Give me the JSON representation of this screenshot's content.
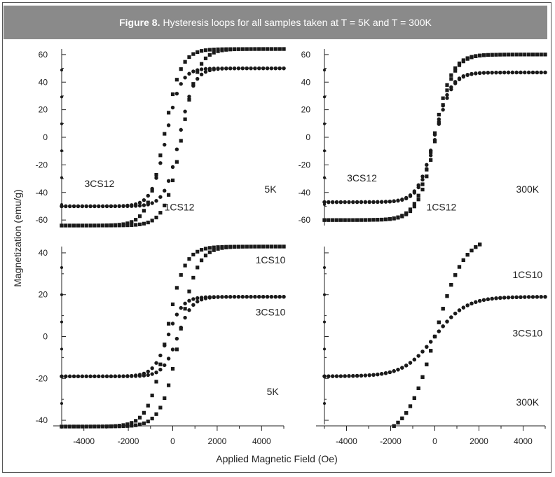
{
  "figure": {
    "label": "Figure 8.",
    "caption": "Hysteresis loops for all samples taken at T = 5K and T = 300K"
  },
  "chart_data": {
    "type": "scatter",
    "xlabel": "Applied Magnetic Field (Oe)",
    "ylabel": "Magnetization (emu/g)",
    "x_ticks": [
      -4000,
      -2000,
      0,
      2000,
      4000
    ],
    "x_tick_labels": [
      "-4000",
      "-2000",
      "0",
      "2000",
      "4000"
    ],
    "xlim": [
      -5000,
      5000
    ],
    "colors": {
      "marker": "#1a1a1a",
      "axis": "#222222",
      "title_bg": "#8a8a8a"
    },
    "panels": [
      {
        "id": "top-left",
        "ylim": [
          -64,
          64
        ],
        "y_ticks": [
          -60,
          -40,
          -20,
          0,
          20,
          40,
          60
        ],
        "y_tick_labels": [
          "-60",
          "-40",
          "-20",
          "0",
          "20",
          "40",
          "60"
        ],
        "annotations": [
          {
            "text": "3CS12",
            "x": -3300,
            "y": -36
          },
          {
            "text": "1CS12",
            "x": 300,
            "y": -53
          },
          {
            "text": "5K",
            "x": 4400,
            "y": -40
          }
        ],
        "series": [
          {
            "name": "1CS12",
            "marker": "square",
            "Ms": 64,
            "Hc": 400,
            "H0": 750
          },
          {
            "name": "3CS12",
            "marker": "circle",
            "Ms": 50,
            "Hc": 300,
            "H0": 650
          }
        ]
      },
      {
        "id": "top-right",
        "ylim": [
          -64,
          64
        ],
        "y_ticks": [
          -60,
          -40,
          -20,
          0,
          20,
          40,
          60
        ],
        "y_tick_labels": [
          "-60",
          "-40",
          "-20",
          "0",
          "20",
          "40",
          "60"
        ],
        "annotations": [
          {
            "text": "3CS12",
            "x": -3300,
            "y": -32
          },
          {
            "text": "1CS12",
            "x": 300,
            "y": -53
          },
          {
            "text": "300K",
            "x": 4200,
            "y": -40
          }
        ],
        "series": [
          {
            "name": "1CS12",
            "marker": "square",
            "Ms": 60,
            "Hc": 40,
            "H0": 800
          },
          {
            "name": "3CS12",
            "marker": "circle",
            "Ms": 47,
            "Hc": 30,
            "H0": 750
          }
        ]
      },
      {
        "id": "bottom-left",
        "ylim": [
          -42,
          43
        ],
        "y_ticks": [
          -40,
          -20,
          0,
          20,
          40
        ],
        "y_tick_labels": [
          "-40",
          "-20",
          "0",
          "20",
          "40"
        ],
        "annotations": [
          {
            "text": "1CS10",
            "x": 4400,
            "y": 35
          },
          {
            "text": "3CS10",
            "x": 4400,
            "y": 10
          },
          {
            "text": "5K",
            "x": 4500,
            "y": -28
          }
        ],
        "series": [
          {
            "name": "1CS10",
            "marker": "square",
            "Ms": 43,
            "Hc": 300,
            "H0": 800
          },
          {
            "name": "3CS10",
            "marker": "circle",
            "Ms": 19,
            "Hc": 220,
            "H0": 650
          }
        ]
      },
      {
        "id": "bottom-right",
        "ylim": [
          -42,
          43
        ],
        "y_ticks": [],
        "y_tick_labels": [],
        "annotations": [
          {
            "text": "1CS10",
            "x": 4200,
            "y": 28
          },
          {
            "text": "3CS10",
            "x": 4200,
            "y": 0
          },
          {
            "text": "300K",
            "x": 4200,
            "y": -33
          }
        ],
        "series": [
          {
            "name": "1CS10",
            "marker": "square",
            "Ms": 48,
            "Hc": 0,
            "H0": 1300
          },
          {
            "name": "3CS10",
            "marker": "circle",
            "Ms": 19,
            "Hc": 0,
            "H0": 1400
          }
        ]
      }
    ]
  }
}
